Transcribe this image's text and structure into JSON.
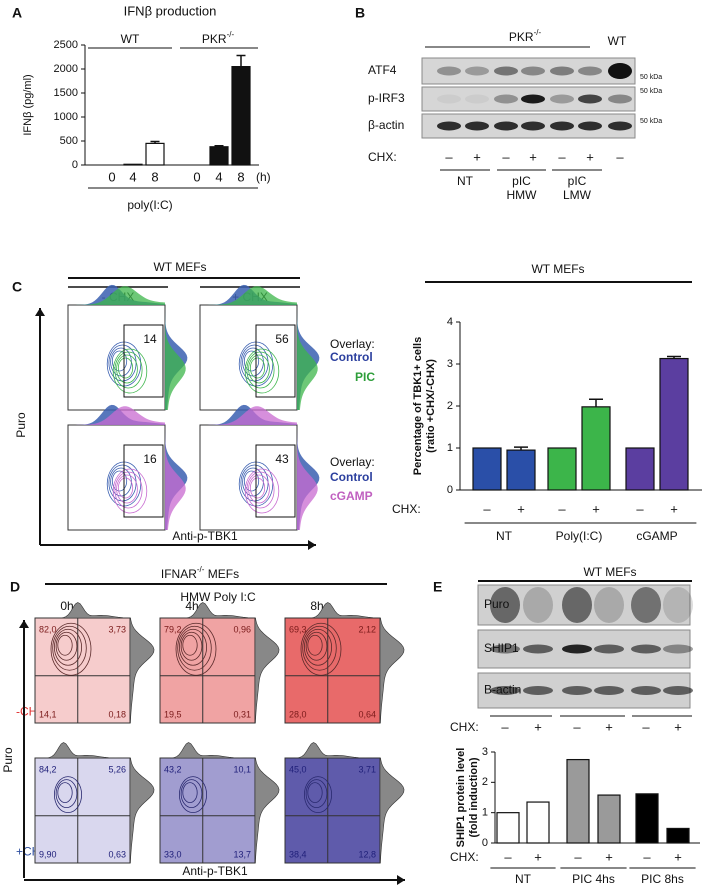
{
  "panel_labels": [
    "A",
    "B",
    "C",
    "D",
    "E"
  ],
  "chart_data": [
    {
      "type": "bar",
      "title": "IFNβ production",
      "ylabel": "IFNβ (pg/ml)",
      "xlabel": "poly(I:C)",
      "x_unit": "(h)",
      "groups": [
        {
          "label": "WT"
        },
        {
          "label": "PKR",
          "sup": "-/-"
        }
      ],
      "categories": [
        "0",
        "4",
        "8",
        "0",
        "4",
        "8"
      ],
      "values": [
        0,
        15,
        450,
        0,
        380,
        2050
      ],
      "errors": [
        null,
        null,
        40,
        null,
        20,
        230
      ],
      "colors": [
        "#ffffff",
        "#ffffff",
        "#ffffff",
        "#111111",
        "#111111",
        "#111111"
      ],
      "ylim": [
        0,
        2500
      ],
      "yticks": [
        0,
        500,
        1000,
        1500,
        2000,
        2500
      ]
    },
    {
      "type": "bar",
      "title": "WT MEFs",
      "ylabel": [
        "Percentage of TBK1+ cells",
        "(ratio +CHX/-CHX)"
      ],
      "row_label": "CHX:",
      "groups": [
        "NT",
        "Poly(I:C)",
        "cGAMP"
      ],
      "categories": [
        "–",
        "+",
        "–",
        "+",
        "–",
        "+"
      ],
      "values": [
        1,
        0.95,
        1,
        1.98,
        1,
        3.13
      ],
      "errors": [
        null,
        0.07,
        null,
        0.18,
        null,
        0.05
      ],
      "colors": [
        "#2a4fa8",
        "#2a4fa8",
        "#3cb54a",
        "#3cb54a",
        "#5b3ea0",
        "#5b3ea0"
      ],
      "ylim": [
        0,
        4
      ],
      "yticks": [
        0,
        1,
        2,
        3,
        4
      ]
    },
    {
      "type": "bar",
      "ylabel": [
        "SHIP1 protein level",
        "(fold induction)"
      ],
      "row_label": "CHX:",
      "groups": [
        "NT",
        "PIC 4hs",
        "PIC 8hs"
      ],
      "categories": [
        "–",
        "+",
        "–",
        "+",
        "–",
        "+"
      ],
      "values": [
        1,
        1.35,
        2.75,
        1.58,
        1.62,
        0.48
      ],
      "colors": [
        "#ffffff",
        "#ffffff",
        "#9a9a9a",
        "#9a9a9a",
        "#000000",
        "#000000"
      ],
      "ylim": [
        0,
        3
      ],
      "yticks": [
        0,
        1,
        2,
        3
      ]
    }
  ],
  "blot_b": {
    "group_label": {
      "label": "PKR",
      "sup": "-/-"
    },
    "wt_label": "WT",
    "rows": [
      "ATF4",
      "p-IRF3",
      "β-actin"
    ],
    "kda": [
      "50 kDa",
      "50 kDa",
      "50 kDa"
    ],
    "row_label": "CHX:",
    "lanes": [
      "–",
      "+",
      "–",
      "+",
      "–",
      "+",
      "–"
    ],
    "groups": [
      [
        "NT"
      ],
      [
        "pIC",
        "HMW"
      ],
      [
        "pIC",
        "LMW"
      ]
    ]
  },
  "flow_c": {
    "title": "WT MEFs",
    "columns": [
      "- CHX",
      "+ CHX"
    ],
    "gates": [
      14,
      56,
      16,
      43
    ],
    "overlays": [
      {
        "label": "Overlay:",
        "items": [
          "Control",
          "PIC"
        ]
      },
      {
        "label": "Overlay:",
        "items": [
          "Control",
          "cGAMP"
        ]
      }
    ],
    "ylabel": "Puro",
    "xlabel": "Anti-p-TBK1"
  },
  "flow_d": {
    "title": "IFNAR",
    "title_sup": "-/-",
    "title_rest": " MEFs",
    "subtitle": "HMW Poly I:C",
    "timepoints": [
      "0h",
      "4h",
      "8h"
    ],
    "rows": [
      "-CHX",
      "+CHX"
    ],
    "quadrants": [
      [
        [
          "82,0",
          "3,73",
          "14,1",
          "0,18"
        ],
        [
          "79,2",
          "0,96",
          "19,5",
          "0,31"
        ],
        [
          "69,3",
          "2,12",
          "28,0",
          "0,64"
        ]
      ],
      [
        [
          "84,2",
          "5,26",
          "9,90",
          "0,63"
        ],
        [
          "43,2",
          "10,1",
          "33,0",
          "13,7"
        ],
        [
          "45,0",
          "3,71",
          "38,4",
          "12,8"
        ]
      ]
    ],
    "ylabel": "Puro",
    "xlabel": "Anti-p-TBK1"
  },
  "blot_e": {
    "title": "WT MEFs",
    "rows": [
      "Puro",
      "SHIP1",
      "B-actin"
    ],
    "row_label": "CHX:",
    "lanes": [
      "–",
      "+",
      "–",
      "+",
      "–",
      "+"
    ]
  }
}
